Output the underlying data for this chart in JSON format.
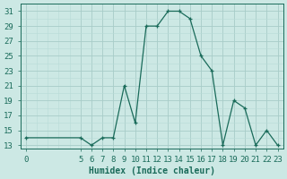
{
  "title": "",
  "xlabel": "Humidex (Indice chaleur)",
  "x_data": [
    0,
    5,
    6,
    7,
    8,
    9,
    10,
    11,
    12,
    13,
    14,
    15,
    16,
    17,
    18,
    19,
    20,
    21,
    22,
    23
  ],
  "y_data": [
    14,
    14,
    13,
    14,
    14,
    21,
    16,
    29,
    29,
    31,
    31,
    30,
    25,
    23,
    13,
    19,
    18,
    13,
    15,
    13
  ],
  "line_color": "#1a6b5a",
  "marker": "+",
  "bg_color": "#cce8e4",
  "grid_color_minor": "#b8dbd7",
  "grid_color_major": "#a8ccc8",
  "ylim_min": 12.5,
  "ylim_max": 32,
  "yticks": [
    13,
    15,
    17,
    19,
    21,
    23,
    25,
    27,
    29,
    31
  ],
  "xlim_min": -0.5,
  "xlim_max": 23.5,
  "xticks": [
    0,
    5,
    6,
    7,
    8,
    9,
    10,
    11,
    12,
    13,
    14,
    15,
    16,
    17,
    18,
    19,
    20,
    21,
    22,
    23
  ],
  "label_fontsize": 7,
  "tick_fontsize": 6.5
}
